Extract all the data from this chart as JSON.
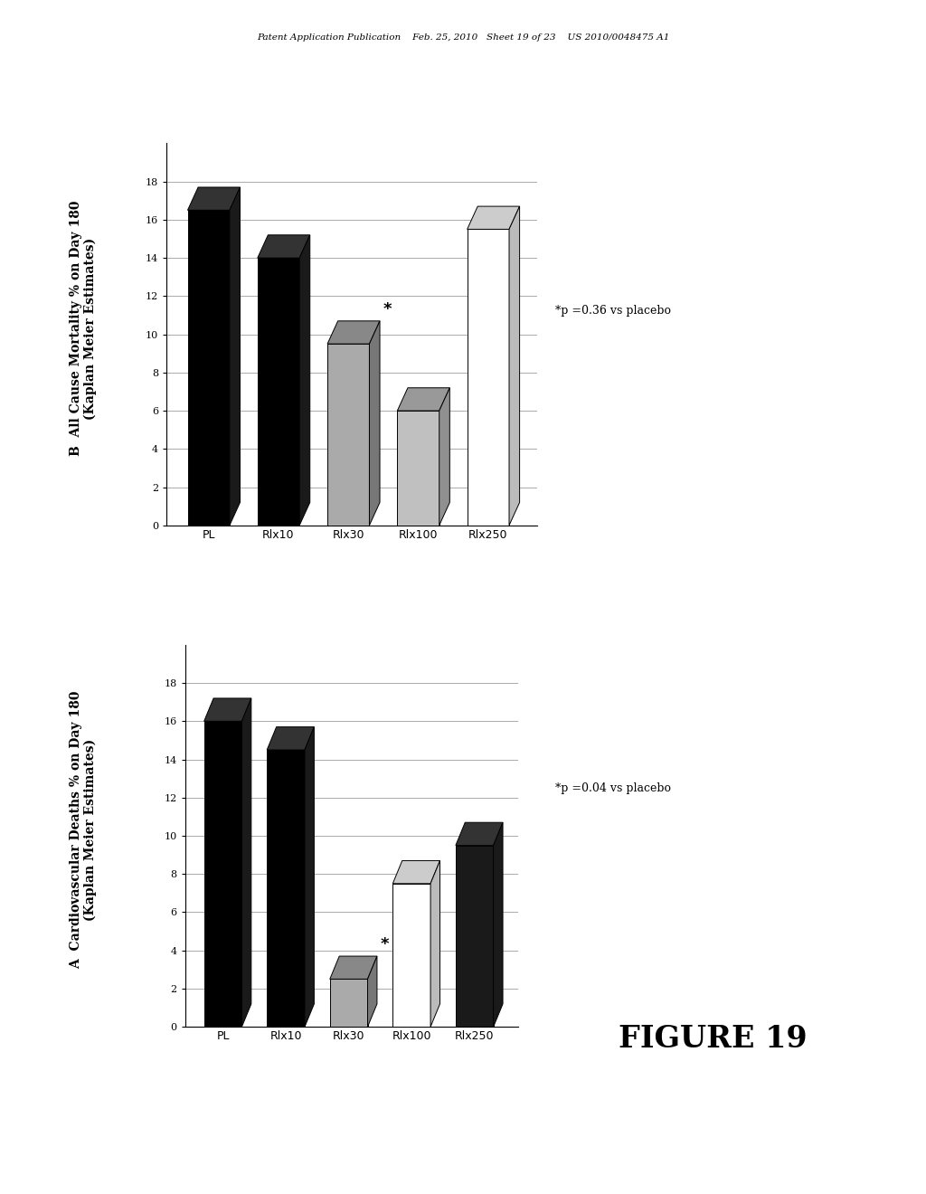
{
  "chart_A": {
    "title": "A  Cardiovascular Deaths % on Day 180\n(Kaplan Meier Estimates)",
    "categories": [
      "PL",
      "Rlx10",
      "Rlx30",
      "Rlx100",
      "Rlx250"
    ],
    "values": [
      16.0,
      14.5,
      2.5,
      7.5,
      9.5
    ],
    "bar_colors": [
      "#000000",
      "#000000",
      "#aaaaaa",
      "#ffffff",
      "#1a1a1a"
    ],
    "top_colors": [
      "#333333",
      "#333333",
      "#888888",
      "#cccccc",
      "#333333"
    ],
    "side_colors": [
      "#1a1a1a",
      "#1a1a1a",
      "#777777",
      "#bbbbbb",
      "#1a1a1a"
    ],
    "asterisk_idx": 2,
    "p_text": "*p =0.04 vs placebo"
  },
  "chart_B": {
    "title": "B  All Cause Mortality % on Day 180\n(Kaplan Meier Estimates)",
    "categories": [
      "PL",
      "Rlx10",
      "Rlx30",
      "Rlx100",
      "Rlx250"
    ],
    "values": [
      16.5,
      14.0,
      9.5,
      6.0,
      15.5
    ],
    "bar_colors": [
      "#000000",
      "#000000",
      "#aaaaaa",
      "#c0c0c0",
      "#ffffff"
    ],
    "top_colors": [
      "#333333",
      "#333333",
      "#888888",
      "#999999",
      "#cccccc"
    ],
    "side_colors": [
      "#1a1a1a",
      "#1a1a1a",
      "#777777",
      "#909090",
      "#bbbbbb"
    ],
    "asterisk_idx": 2,
    "p_text": "*p =0.36 vs placebo"
  },
  "xticks": [
    0,
    2,
    4,
    6,
    8,
    10,
    12,
    14,
    16,
    18
  ],
  "xlim_max": 18,
  "header": "Patent Application Publication    Feb. 25, 2010   Sheet 19 of 23    US 2010/0048475 A1",
  "figure_label": "FIGURE 19",
  "bg_color": "#ffffff"
}
